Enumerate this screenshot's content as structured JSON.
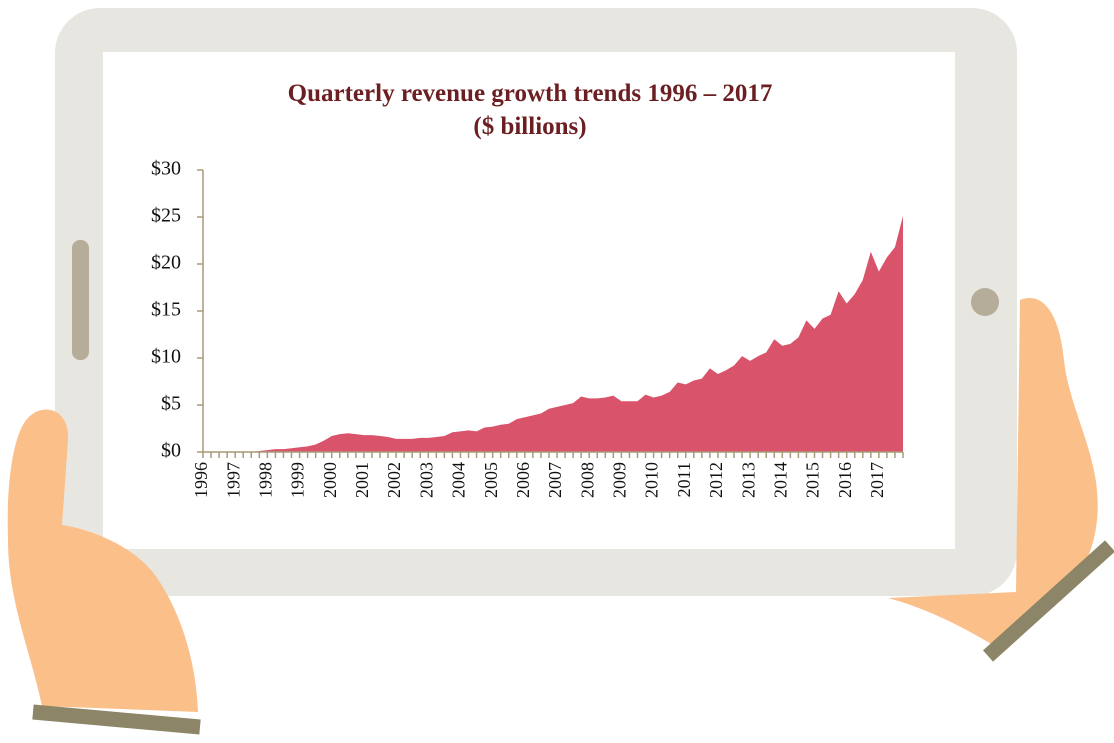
{
  "chart_data": {
    "type": "area",
    "title": [
      "Quarterly revenue growth trends 1996 – 2017",
      "($ billions)"
    ],
    "categories": [
      "1996",
      null,
      null,
      null,
      "1997",
      null,
      null,
      null,
      "1998",
      null,
      null,
      null,
      "1999",
      null,
      null,
      null,
      "2000",
      null,
      null,
      null,
      "2001",
      null,
      null,
      null,
      "2002",
      null,
      null,
      null,
      "2003",
      null,
      null,
      null,
      "2004",
      null,
      null,
      null,
      "2005",
      null,
      null,
      null,
      "2006",
      null,
      null,
      null,
      "2007",
      null,
      null,
      null,
      "2008",
      null,
      null,
      null,
      "2009",
      null,
      null,
      null,
      "2010",
      null,
      null,
      null,
      "2011",
      null,
      null,
      null,
      "2012",
      null,
      null,
      null,
      "2013",
      null,
      null,
      null,
      "2014",
      null,
      null,
      null,
      "2015",
      null,
      null,
      null,
      "2016",
      null,
      null,
      null,
      "2017",
      null,
      null,
      null
    ],
    "values": [
      0,
      0,
      0,
      0,
      0,
      0,
      0,
      0.1,
      0.2,
      0.3,
      0.3,
      0.4,
      0.5,
      0.6,
      0.8,
      1.2,
      1.7,
      1.9,
      2.0,
      1.9,
      1.8,
      1.8,
      1.7,
      1.6,
      1.4,
      1.4,
      1.4,
      1.5,
      1.5,
      1.6,
      1.7,
      2.1,
      2.2,
      2.3,
      2.2,
      2.6,
      2.7,
      2.9,
      3.0,
      3.5,
      3.7,
      3.9,
      4.1,
      4.6,
      4.8,
      5.0,
      5.2,
      5.9,
      5.7,
      5.7,
      5.8,
      6.0,
      5.4,
      5.4,
      5.4,
      6.1,
      5.8,
      6.0,
      6.4,
      7.4,
      7.2,
      7.6,
      7.8,
      8.9,
      8.3,
      8.7,
      9.2,
      10.2,
      9.7,
      10.2,
      10.6,
      12.0,
      11.3,
      11.5,
      12.2,
      14.0,
      13.1,
      14.2,
      14.6,
      17.1,
      15.8,
      16.8,
      18.3,
      21.3,
      19.2,
      20.7,
      21.8,
      25.1
    ],
    "color": "#d9536b",
    "ylim": [
      0,
      30
    ],
    "yticks": [
      {
        "value": 0,
        "label": "$0"
      },
      {
        "value": 5,
        "label": "$5"
      },
      {
        "value": 10,
        "label": "$10"
      },
      {
        "value": 15,
        "label": "$15"
      },
      {
        "value": 20,
        "label": "$20"
      },
      {
        "value": 25,
        "label": "$25"
      },
      {
        "value": 30,
        "label": "$30"
      }
    ],
    "grid": false
  }
}
